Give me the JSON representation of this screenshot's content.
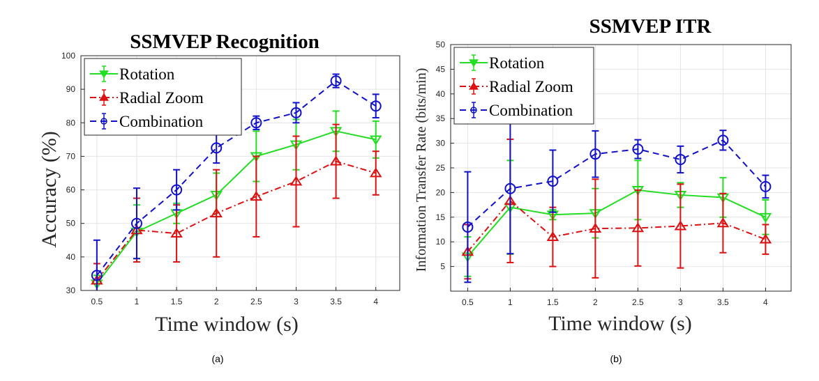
{
  "chart_data": [
    {
      "type": "line",
      "title": "SSMVEP Recognition",
      "xlabel": "Time window (s)",
      "ylabel": "Accuracy (%)",
      "caption": "(a)",
      "xlim": [
        0.3,
        4.3
      ],
      "ylim": [
        30,
        100
      ],
      "grid": true,
      "legend_position": "top-left",
      "x": [
        0.5,
        1,
        1.5,
        2,
        2.5,
        3,
        3.5,
        4
      ],
      "x_tick_labels": [
        "0.5",
        "1",
        "1.5",
        "2",
        "2.5",
        "3",
        "3.5",
        "4"
      ],
      "y_ticks": [
        30,
        40,
        50,
        60,
        70,
        80,
        90,
        100
      ],
      "series": [
        {
          "name": "Rotation",
          "color": "#22dd22",
          "line": "solid",
          "marker": "triangle-down",
          "values": [
            32,
            47.5,
            53,
            58.5,
            70,
            73.5,
            77.5,
            75
          ],
          "errors": [
            2.5,
            8,
            3,
            6.5,
            7.5,
            7.5,
            6,
            5.5
          ]
        },
        {
          "name": "Radial Zoom",
          "color": "#dd1111",
          "line": "dashdot",
          "marker": "triangle-up",
          "values": [
            33,
            48,
            47,
            53,
            58,
            62.5,
            68.5,
            65
          ],
          "errors": [
            5,
            9.5,
            8.5,
            13,
            12,
            13.5,
            11,
            6.5
          ]
        },
        {
          "name": "Combination",
          "color": "#1111cc",
          "line": "dashed",
          "marker": "circle",
          "values": [
            34.5,
            50,
            60,
            72.5,
            80,
            83,
            92.5,
            85
          ],
          "errors": [
            10.5,
            10.5,
            6,
            4.5,
            2,
            3,
            2,
            3.5
          ]
        }
      ]
    },
    {
      "type": "line",
      "title": "SSMVEP ITR",
      "xlabel": "Time window (s)",
      "ylabel": "Information Transfer Rate (bits/min)",
      "caption": "(b)",
      "xlim": [
        0.3,
        4.3
      ],
      "ylim": [
        0,
        50
      ],
      "grid": true,
      "legend_position": "top-left",
      "x": [
        0.5,
        1,
        1.5,
        2,
        2.5,
        3,
        3.5,
        4
      ],
      "x_tick_labels": [
        "0.5",
        "1",
        "1.5",
        "2",
        "2.5",
        "3",
        "3.5",
        "4"
      ],
      "y_ticks": [
        5,
        10,
        15,
        20,
        25,
        30,
        35,
        40,
        45,
        50
      ],
      "series": [
        {
          "name": "Rotation",
          "color": "#22dd22",
          "line": "solid",
          "marker": "triangle-down",
          "values": [
            7,
            17,
            15.5,
            15.8,
            20.5,
            19.5,
            19,
            15
          ],
          "errors": [
            4,
            9.5,
            1,
            5,
            6,
            2.5,
            4,
            3.5
          ]
        },
        {
          "name": "Radial Zoom",
          "color": "#dd1111",
          "line": "dashdot",
          "marker": "triangle-up",
          "values": [
            8,
            18.3,
            11,
            12.7,
            12.8,
            13.2,
            13.8,
            10.5
          ],
          "errors": [
            5.5,
            12.5,
            6,
            10,
            7.7,
            8.5,
            6,
            3
          ]
        },
        {
          "name": "Combination",
          "color": "#1111cc",
          "line": "dashed",
          "marker": "circle",
          "values": [
            13,
            20.8,
            22.3,
            27.8,
            28.8,
            26.7,
            30.6,
            21.2
          ],
          "errors": [
            11.2,
            13.2,
            6.3,
            4.7,
            1.9,
            2.7,
            2,
            2.3
          ]
        }
      ]
    }
  ]
}
